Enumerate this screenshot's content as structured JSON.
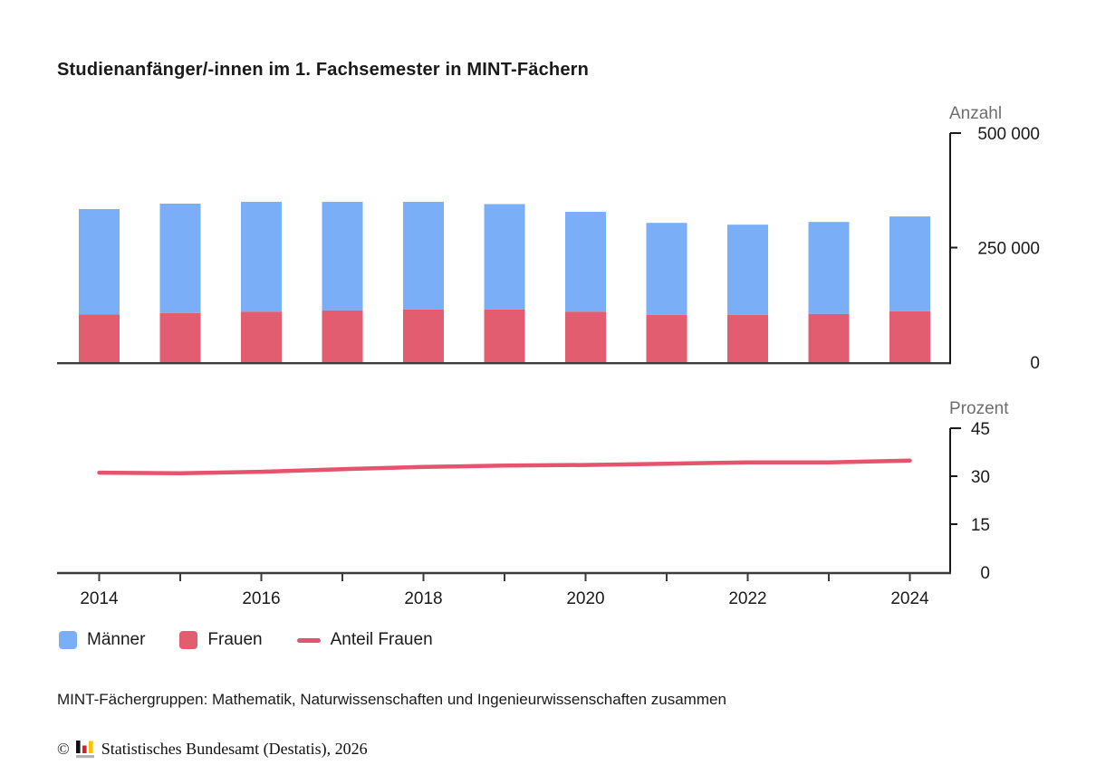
{
  "page": {
    "title": "Studienanfänger/-innen im 1. Fachsemester in MINT-Fächern",
    "footnote": "MINT-Fächergruppen: Mathematik, Naturwissenschaften und Ingenieurwissenschaften zusammen",
    "source": {
      "symbol": "©",
      "text": "Statistisches Bundesamt (Destatis), 2026"
    }
  },
  "chart_data": {
    "type": "combo",
    "title": "Studienanfänger/-innen im 1. Fachsemester in MINT-Fächern",
    "x": [
      2014,
      2015,
      2016,
      2017,
      2018,
      2019,
      2020,
      2021,
      2022,
      2023,
      2024
    ],
    "x_tick_labels_shown": [
      "2014",
      "2016",
      "2018",
      "2020",
      "2022",
      "2024"
    ],
    "series": [
      {
        "name": "Männer",
        "type": "bar",
        "stack": "mint",
        "color": "#7aaff8",
        "values": [
          230000,
          239000,
          240000,
          237000,
          235000,
          230000,
          218000,
          201000,
          197000,
          201000,
          207000
        ]
      },
      {
        "name": "Frauen",
        "type": "bar",
        "stack": "mint",
        "color": "#e35d70",
        "values": [
          104000,
          107000,
          110000,
          113000,
          115000,
          115000,
          110000,
          103000,
          103000,
          105000,
          111000
        ]
      },
      {
        "name": "Anteil Frauen",
        "type": "line",
        "axis": "prozent",
        "color": "#e4546c",
        "values": [
          31.1,
          30.9,
          31.4,
          32.2,
          32.9,
          33.3,
          33.5,
          33.9,
          34.3,
          34.3,
          34.9
        ]
      }
    ],
    "axes": {
      "anzahl": {
        "label": "Anzahl",
        "range": [
          0,
          500000
        ],
        "ticks": [
          500000,
          250000,
          0
        ],
        "tick_labels": [
          "500 000",
          "250 000",
          "0"
        ],
        "side": "right"
      },
      "prozent": {
        "label": "Prozent",
        "range": [
          0,
          45
        ],
        "ticks": [
          45,
          30,
          15,
          0
        ],
        "tick_labels": [
          "45",
          "30",
          "15",
          "0"
        ],
        "side": "right"
      }
    },
    "grid": false,
    "legend_position": "bottom-left"
  },
  "legend": [
    {
      "label": "Männer",
      "swatch": "square"
    },
    {
      "label": "Frauen",
      "swatch": "square"
    },
    {
      "label": "Anteil Frauen",
      "swatch": "line"
    }
  ]
}
